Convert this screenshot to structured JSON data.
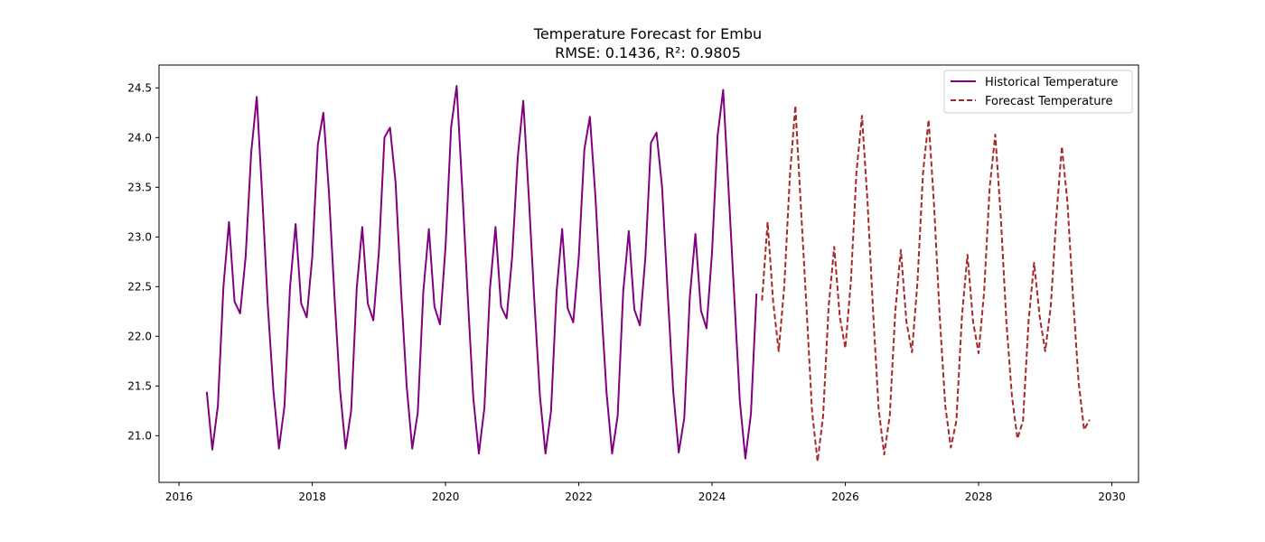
{
  "chart_data": {
    "type": "line",
    "title": "Temperature Forecast for Embu",
    "subtitle": "RMSE: 0.1436, R²: 0.9805",
    "xlabel": "",
    "ylabel": "",
    "xlim": [
      2015.7,
      2030.4
    ],
    "ylim": [
      20.53,
      24.73
    ],
    "x_ticks": [
      2016,
      2018,
      2020,
      2022,
      2024,
      2026,
      2028,
      2030
    ],
    "y_ticks": [
      21.0,
      21.5,
      22.0,
      22.5,
      23.0,
      23.5,
      24.0,
      24.5
    ],
    "grid": false,
    "legend_position": "top-right",
    "colors": {
      "historical": "#800080",
      "forecast": "#a52a2a"
    },
    "series": [
      {
        "name": "Historical Temperature",
        "style": "solid",
        "color_key": "historical",
        "points": [
          [
            "2016-06-01",
            21.44
          ],
          [
            "2016-07-01",
            20.86
          ],
          [
            "2016-08-01",
            21.3
          ],
          [
            "2016-09-01",
            22.5
          ],
          [
            "2016-10-01",
            23.15
          ],
          [
            "2016-11-01",
            22.35
          ],
          [
            "2016-12-01",
            22.23
          ],
          [
            "2017-01-01",
            22.8
          ],
          [
            "2017-02-01",
            23.85
          ],
          [
            "2017-03-01",
            24.41
          ],
          [
            "2017-04-01",
            23.4
          ],
          [
            "2017-05-01",
            22.3
          ],
          [
            "2017-06-01",
            21.45
          ],
          [
            "2017-07-01",
            20.87
          ],
          [
            "2017-08-01",
            21.3
          ],
          [
            "2017-09-01",
            22.5
          ],
          [
            "2017-10-01",
            23.13
          ],
          [
            "2017-11-01",
            22.33
          ],
          [
            "2017-12-01",
            22.19
          ],
          [
            "2018-01-01",
            22.8
          ],
          [
            "2018-02-01",
            23.93
          ],
          [
            "2018-03-01",
            24.25
          ],
          [
            "2018-04-01",
            23.45
          ],
          [
            "2018-05-01",
            22.4
          ],
          [
            "2018-06-01",
            21.46
          ],
          [
            "2018-07-01",
            20.87
          ],
          [
            "2018-08-01",
            21.25
          ],
          [
            "2018-09-01",
            22.48
          ],
          [
            "2018-10-01",
            23.1
          ],
          [
            "2018-11-01",
            22.33
          ],
          [
            "2018-12-01",
            22.16
          ],
          [
            "2019-01-01",
            22.85
          ],
          [
            "2019-02-01",
            24.0
          ],
          [
            "2019-03-01",
            24.1
          ],
          [
            "2019-04-01",
            23.55
          ],
          [
            "2019-05-01",
            22.45
          ],
          [
            "2019-06-01",
            21.5
          ],
          [
            "2019-07-01",
            20.87
          ],
          [
            "2019-08-01",
            21.23
          ],
          [
            "2019-09-01",
            22.45
          ],
          [
            "2019-10-01",
            23.08
          ],
          [
            "2019-11-01",
            22.3
          ],
          [
            "2019-12-01",
            22.12
          ],
          [
            "2020-01-01",
            22.9
          ],
          [
            "2020-02-01",
            24.1
          ],
          [
            "2020-03-01",
            24.52
          ],
          [
            "2020-04-01",
            23.5
          ],
          [
            "2020-05-01",
            22.4
          ],
          [
            "2020-06-01",
            21.38
          ],
          [
            "2020-07-01",
            20.82
          ],
          [
            "2020-08-01",
            21.28
          ],
          [
            "2020-09-01",
            22.48
          ],
          [
            "2020-10-01",
            23.1
          ],
          [
            "2020-11-01",
            22.3
          ],
          [
            "2020-12-01",
            22.18
          ],
          [
            "2021-01-01",
            22.8
          ],
          [
            "2021-02-01",
            23.8
          ],
          [
            "2021-03-01",
            24.37
          ],
          [
            "2021-04-01",
            23.4
          ],
          [
            "2021-05-01",
            22.35
          ],
          [
            "2021-06-01",
            21.4
          ],
          [
            "2021-07-01",
            20.82
          ],
          [
            "2021-08-01",
            21.25
          ],
          [
            "2021-09-01",
            22.45
          ],
          [
            "2021-10-01",
            23.08
          ],
          [
            "2021-11-01",
            22.28
          ],
          [
            "2021-12-01",
            22.14
          ],
          [
            "2022-01-01",
            22.8
          ],
          [
            "2022-02-01",
            23.88
          ],
          [
            "2022-03-01",
            24.21
          ],
          [
            "2022-04-01",
            23.4
          ],
          [
            "2022-05-01",
            22.35
          ],
          [
            "2022-06-01",
            21.43
          ],
          [
            "2022-07-01",
            20.82
          ],
          [
            "2022-08-01",
            21.2
          ],
          [
            "2022-09-01",
            22.45
          ],
          [
            "2022-10-01",
            23.06
          ],
          [
            "2022-11-01",
            22.27
          ],
          [
            "2022-12-01",
            22.11
          ],
          [
            "2023-01-01",
            22.8
          ],
          [
            "2023-02-01",
            23.95
          ],
          [
            "2023-03-01",
            24.05
          ],
          [
            "2023-04-01",
            23.5
          ],
          [
            "2023-05-01",
            22.45
          ],
          [
            "2023-06-01",
            21.45
          ],
          [
            "2023-07-01",
            20.83
          ],
          [
            "2023-08-01",
            21.18
          ],
          [
            "2023-09-01",
            22.4
          ],
          [
            "2023-10-01",
            23.03
          ],
          [
            "2023-11-01",
            22.26
          ],
          [
            "2023-12-01",
            22.08
          ],
          [
            "2024-01-01",
            22.85
          ],
          [
            "2024-02-01",
            24.02
          ],
          [
            "2024-03-01",
            24.48
          ],
          [
            "2024-04-01",
            23.45
          ],
          [
            "2024-05-01",
            22.4
          ],
          [
            "2024-06-01",
            21.35
          ],
          [
            "2024-07-01",
            20.77
          ],
          [
            "2024-08-01",
            21.22
          ],
          [
            "2024-09-01",
            22.43
          ]
        ]
      },
      {
        "name": "Forecast Temperature",
        "style": "dashed",
        "color_key": "forecast",
        "points": [
          [
            "2024-10-01",
            22.36
          ],
          [
            "2024-11-01",
            23.15
          ],
          [
            "2024-12-01",
            22.35
          ],
          [
            "2025-01-01",
            21.85
          ],
          [
            "2025-02-01",
            22.5
          ],
          [
            "2025-03-01",
            23.6
          ],
          [
            "2025-04-01",
            24.32
          ],
          [
            "2025-05-01",
            23.3
          ],
          [
            "2025-06-01",
            22.3
          ],
          [
            "2025-07-01",
            21.25
          ],
          [
            "2025-08-01",
            20.74
          ],
          [
            "2025-09-01",
            21.2
          ],
          [
            "2025-10-01",
            22.3
          ],
          [
            "2025-11-01",
            22.9
          ],
          [
            "2025-12-01",
            22.2
          ],
          [
            "2026-01-01",
            21.88
          ],
          [
            "2026-02-01",
            22.55
          ],
          [
            "2026-03-01",
            23.65
          ],
          [
            "2026-04-01",
            24.22
          ],
          [
            "2026-05-01",
            23.35
          ],
          [
            "2026-06-01",
            22.25
          ],
          [
            "2026-07-01",
            21.27
          ],
          [
            "2026-08-01",
            20.81
          ],
          [
            "2026-09-01",
            21.2
          ],
          [
            "2026-10-01",
            22.25
          ],
          [
            "2026-11-01",
            22.87
          ],
          [
            "2026-12-01",
            22.15
          ],
          [
            "2027-01-01",
            21.84
          ],
          [
            "2027-02-01",
            22.55
          ],
          [
            "2027-03-01",
            23.65
          ],
          [
            "2027-04-01",
            24.18
          ],
          [
            "2027-05-01",
            23.3
          ],
          [
            "2027-06-01",
            22.2
          ],
          [
            "2027-07-01",
            21.3
          ],
          [
            "2027-08-01",
            20.88
          ],
          [
            "2027-09-01",
            21.15
          ],
          [
            "2027-10-01",
            22.2
          ],
          [
            "2027-11-01",
            22.82
          ],
          [
            "2027-12-01",
            22.15
          ],
          [
            "2028-01-01",
            21.83
          ],
          [
            "2028-02-01",
            22.45
          ],
          [
            "2028-03-01",
            23.5
          ],
          [
            "2028-04-01",
            24.03
          ],
          [
            "2028-05-01",
            23.2
          ],
          [
            "2028-06-01",
            22.15
          ],
          [
            "2028-07-01",
            21.4
          ],
          [
            "2028-08-01",
            20.97
          ],
          [
            "2028-09-01",
            21.15
          ],
          [
            "2028-10-01",
            22.15
          ],
          [
            "2028-11-01",
            22.74
          ],
          [
            "2028-12-01",
            22.2
          ],
          [
            "2029-01-01",
            21.85
          ],
          [
            "2029-02-01",
            22.3
          ],
          [
            "2029-03-01",
            23.2
          ],
          [
            "2029-04-01",
            23.91
          ],
          [
            "2029-05-01",
            23.35
          ],
          [
            "2029-06-01",
            22.4
          ],
          [
            "2029-07-01",
            21.55
          ],
          [
            "2029-08-01",
            21.06
          ],
          [
            "2029-09-01",
            21.16
          ]
        ]
      }
    ]
  }
}
